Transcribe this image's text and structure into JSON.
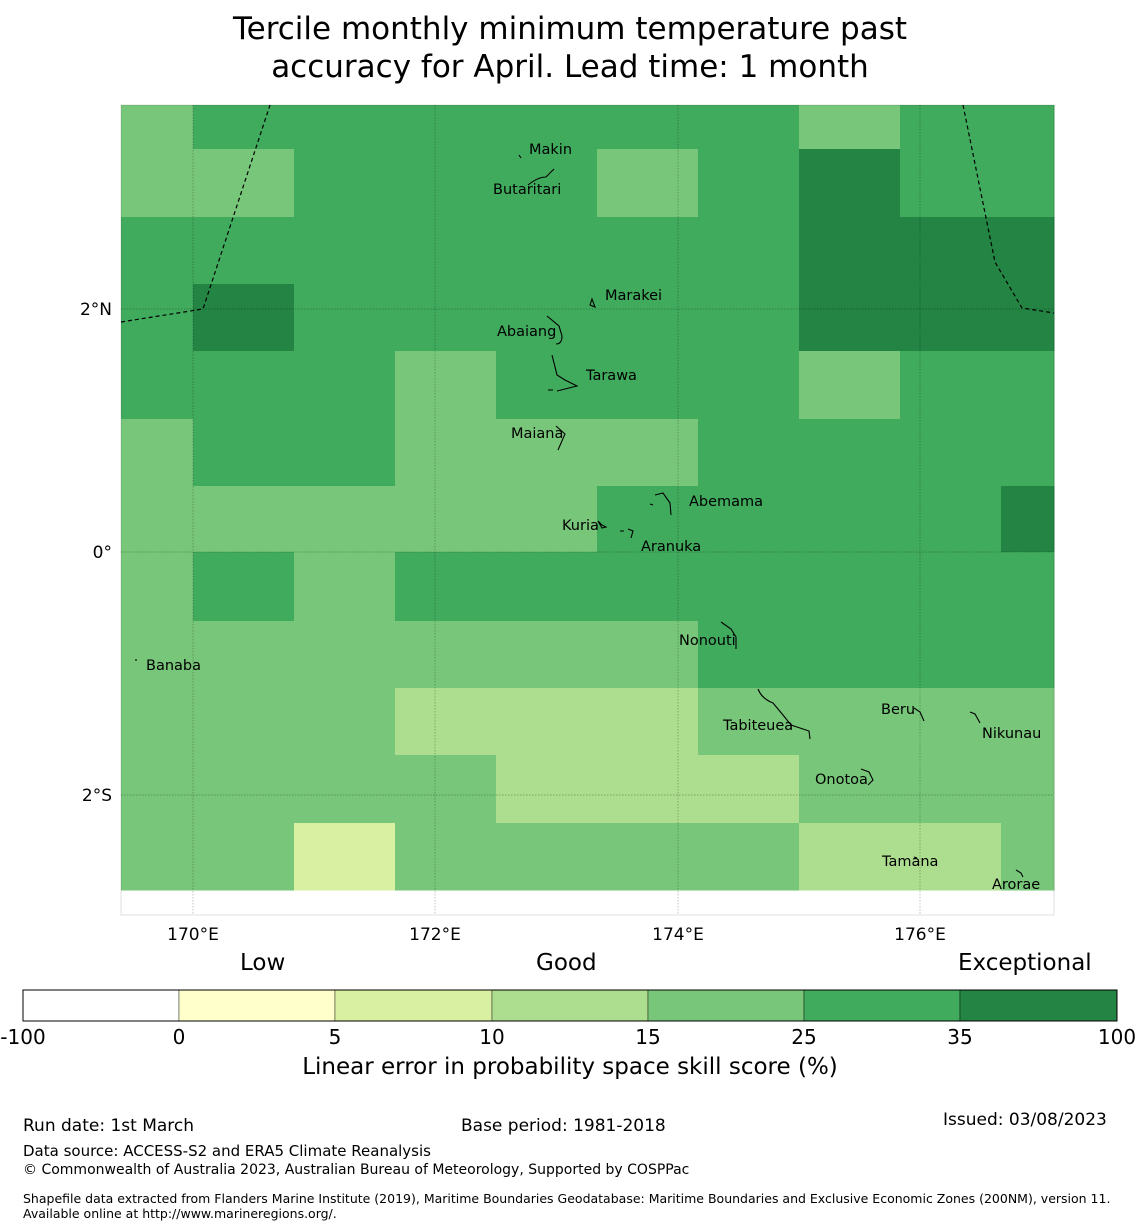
{
  "title": {
    "line1": "Tercile monthly minimum temperature past",
    "line2": "accuracy for April. Lead time: 1 month"
  },
  "map": {
    "lat_ticks": [
      "2°N",
      "0°",
      "2°S"
    ],
    "lon_ticks": [
      "170°E",
      "172°E",
      "174°E",
      "176°E"
    ],
    "place_labels": [
      "Makin",
      "Butaritari",
      "Marakei",
      "Abaiang",
      "Tarawa",
      "Maiana",
      "Abemama",
      "Kuria",
      "Aranuka",
      "Nonouti",
      "Banaba",
      "Beru",
      "Tabiteuea",
      "Nikunau",
      "Onotoa",
      "Tamana",
      "Arorae"
    ]
  },
  "colorbar": {
    "words": [
      "Low",
      "Good",
      "Exceptional"
    ],
    "ticks": [
      "-100",
      "0",
      "5",
      "10",
      "15",
      "25",
      "35",
      "100"
    ],
    "colors": [
      "#ffffff",
      "#ffffcc",
      "#d9f0a3",
      "#addd8e",
      "#78c679",
      "#41ab5d",
      "#238443"
    ],
    "label": "Linear error in probability space skill score (%)"
  },
  "footer": {
    "run_date": "Run date: 1st March",
    "base_period": "Base period: 1981-2018",
    "issued": "Issued: 03/08/2023",
    "data_source": "Data source: ACCESS-S2 and ERA5 Climate Reanalysis",
    "copyright": "© Commonwealth of Australia 2023, Australian Bureau of Meteorology, Supported by COSPPac",
    "shapefile": "Shapefile data extracted from Flanders Marine Institute (2019), Maritime Boundaries Geodatabase: Maritime Boundaries and Exclusive Economic Zones (200NM), version 11. Available online at http://www.marineregions.org/."
  },
  "skill_grid": {
    "legend_classes": [
      "-100 to 0",
      "0 to 5",
      "5 to 10",
      "10 to 15",
      "15 to 25",
      "25 to 35",
      "35 to 100"
    ],
    "rows": [
      [
        4,
        5,
        5,
        5,
        5,
        5,
        5,
        4,
        5,
        5
      ],
      [
        4,
        4,
        5,
        5,
        5,
        4,
        5,
        6,
        5,
        5
      ],
      [
        5,
        5,
        5,
        5,
        5,
        5,
        5,
        6,
        6,
        6
      ],
      [
        5,
        6,
        5,
        5,
        5,
        5,
        5,
        6,
        6,
        6
      ],
      [
        5,
        5,
        5,
        4,
        5,
        5,
        5,
        4,
        5,
        5
      ],
      [
        4,
        5,
        5,
        4,
        4,
        4,
        5,
        5,
        5,
        5
      ],
      [
        4,
        4,
        4,
        4,
        4,
        5,
        5,
        5,
        5,
        6
      ],
      [
        4,
        5,
        4,
        5,
        5,
        5,
        5,
        5,
        5,
        5
      ],
      [
        4,
        4,
        4,
        4,
        4,
        4,
        5,
        5,
        5,
        5
      ],
      [
        4,
        4,
        4,
        3,
        3,
        3,
        4,
        4,
        4,
        4
      ],
      [
        4,
        4,
        4,
        4,
        3,
        3,
        3,
        4,
        4,
        4
      ],
      [
        4,
        4,
        2,
        4,
        4,
        4,
        4,
        3,
        3,
        4
      ]
    ]
  }
}
